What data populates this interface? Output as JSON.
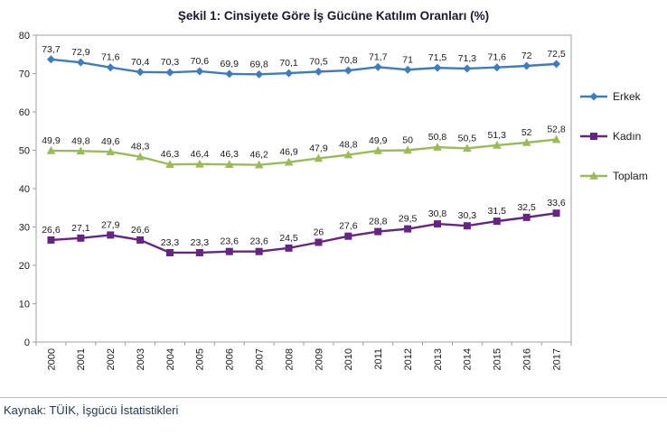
{
  "title": "Şekil 1: Cinsiyete Göre İş Gücüne Katılım Oranları (%)",
  "source": "Kaynak: TÜİK, İşgücü İstatistikleri",
  "chart_data": {
    "type": "line",
    "title": "Şekil 1: Cinsiyete Göre İş Gücüne Katılım Oranları (%)",
    "categories": [
      "2000",
      "2001",
      "2002",
      "2003",
      "2004",
      "2005",
      "2006",
      "2007",
      "2008",
      "2009",
      "2010",
      "2011",
      "2012",
      "2013",
      "2014",
      "2015",
      "2016",
      "2017"
    ],
    "series": [
      {
        "name": "Erkek",
        "marker": "diamond",
        "color": "#3E7CBE",
        "values": [
          73.7,
          72.9,
          71.6,
          70.4,
          70.3,
          70.6,
          69.9,
          69.8,
          70.1,
          70.5,
          70.8,
          71.7,
          71,
          71.5,
          71.3,
          71.6,
          72,
          72.5
        ]
      },
      {
        "name": "Kadın",
        "marker": "square",
        "color": "#662483",
        "values": [
          26.6,
          27.1,
          27.9,
          26.6,
          23.3,
          23.3,
          23.6,
          23.6,
          24.5,
          26,
          27.6,
          28.8,
          29.5,
          30.8,
          30.3,
          31.5,
          32.5,
          33.6
        ]
      },
      {
        "name": "Toplam",
        "marker": "triangle",
        "color": "#9BBB59",
        "values": [
          49.9,
          49.8,
          49.6,
          48.3,
          46.3,
          46.4,
          46.3,
          46.2,
          46.9,
          47.9,
          48.8,
          49.9,
          50,
          50.8,
          50.5,
          51.3,
          52,
          52.8
        ]
      }
    ],
    "ylim": [
      0,
      80
    ],
    "ytick": 10,
    "grid": false,
    "legend_position": "right",
    "decimal_separator": ",",
    "data_labels": true
  }
}
